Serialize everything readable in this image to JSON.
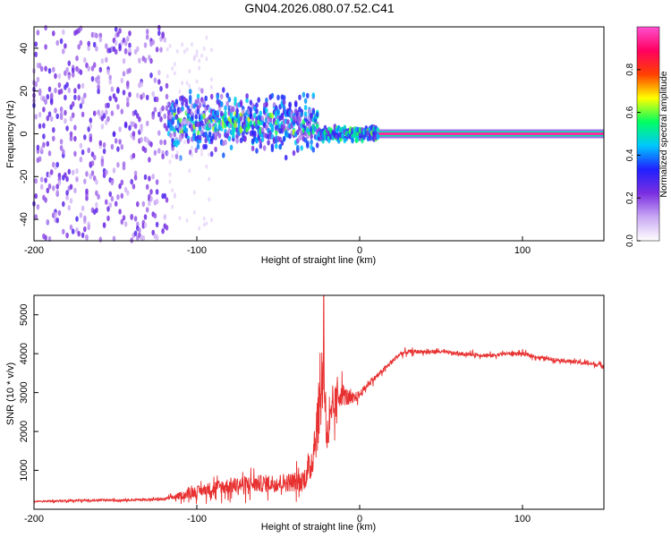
{
  "title": "GN04.2026.080.07.52.C41",
  "chart_data": [
    {
      "type": "heatmap",
      "title": "GN04.2026.080.07.52.C41",
      "xlabel": "Height of straight line (km)",
      "ylabel": "Frequency (Hz)",
      "xlim": [
        -200,
        150
      ],
      "ylim": [
        -50,
        50
      ],
      "xticks": [
        -200,
        -100,
        0,
        100
      ],
      "yticks": [
        -40,
        -20,
        0,
        20,
        40
      ],
      "colorbar": {
        "label": "Normalized spectral amplitude",
        "range": [
          0,
          1
        ],
        "ticks": [
          0.0,
          0.2,
          0.4,
          0.6,
          0.8
        ],
        "tick_labels": [
          "0.0",
          "0.2",
          "0.4",
          "0.6",
          "0.8"
        ],
        "colors": [
          "#ffffff",
          "#c9a8f4",
          "#7a2ee0",
          "#2020ff",
          "#00c8ff",
          "#00ff60",
          "#ffff00",
          "#ff4000",
          "#ff0060",
          "#ff4fd0"
        ]
      },
      "regions": [
        {
          "name": "noise",
          "x": [
            -200,
            -118
          ],
          "freq_spread_hz": 50,
          "amplitude": 0.15
        },
        {
          "name": "broadband",
          "x": [
            -118,
            -25
          ],
          "freq_spread_hz": 20,
          "amplitude": 0.25
        },
        {
          "name": "narrowing",
          "x": [
            -25,
            12
          ],
          "freq_spread_hz": 4,
          "amplitude": 0.45
        },
        {
          "name": "carrier",
          "x": [
            12,
            150
          ],
          "freq_hz": 0,
          "amplitude": 0.95
        }
      ]
    },
    {
      "type": "line",
      "xlabel": "Height of straight line (km)",
      "ylabel": "SNR (10 * v/v)",
      "xlim": [
        -200,
        150
      ],
      "ylim": [
        0,
        5500
      ],
      "xticks": [
        -200,
        -100,
        0,
        100
      ],
      "yticks": [
        1000,
        2000,
        3000,
        4000,
        5000
      ],
      "series": [
        {
          "name": "SNR",
          "color": "#e83030",
          "x": [
            -200,
            -180,
            -160,
            -140,
            -120,
            -110,
            -100,
            -90,
            -80,
            -70,
            -60,
            -50,
            -40,
            -35,
            -30,
            -25,
            -22,
            -20,
            -18,
            -15,
            -12,
            -10,
            -5,
            0,
            5,
            10,
            15,
            20,
            25,
            30,
            40,
            50,
            60,
            70,
            80,
            90,
            100,
            110,
            120,
            130,
            140,
            150
          ],
          "y": [
            200,
            220,
            230,
            240,
            260,
            350,
            450,
            550,
            600,
            640,
            660,
            680,
            700,
            720,
            1100,
            2500,
            3600,
            1800,
            2200,
            2700,
            3000,
            2950,
            2800,
            2950,
            3200,
            3400,
            3600,
            3800,
            4000,
            4050,
            4050,
            4050,
            4000,
            3980,
            3950,
            4000,
            4000,
            3900,
            3850,
            3800,
            3750,
            3700
          ],
          "noise": [
            30,
            40,
            40,
            40,
            40,
            140,
            200,
            260,
            300,
            320,
            320,
            340,
            360,
            380,
            600,
            1200,
            1400,
            700,
            800,
            700,
            500,
            400,
            250,
            150,
            120,
            100,
            90,
            90,
            90,
            80,
            70,
            70,
            70,
            70,
            70,
            70,
            80,
            70,
            70,
            70,
            70,
            70
          ]
        }
      ],
      "spike": {
        "x": -22,
        "y": 5500
      }
    }
  ]
}
